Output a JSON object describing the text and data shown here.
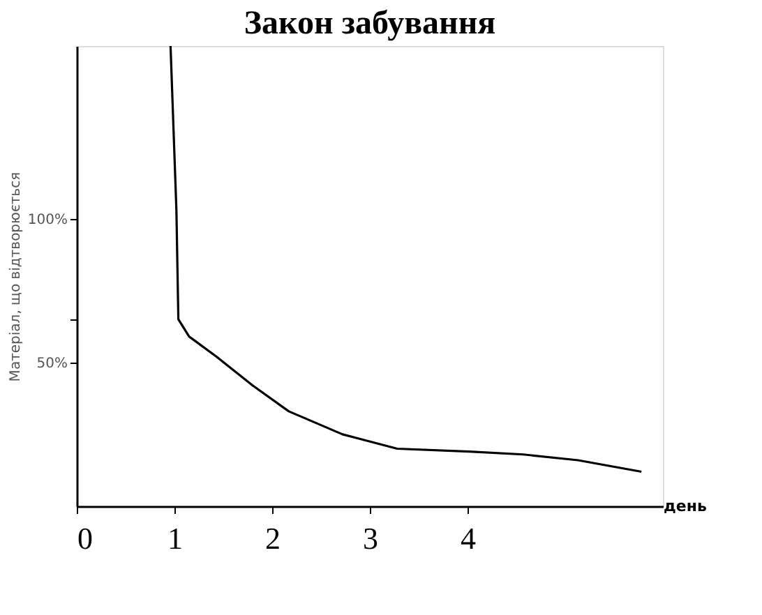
{
  "chart_data": {
    "type": "line",
    "title": "Закон забування",
    "xlabel": "день",
    "ylabel": "Матеріал, що відтворюється",
    "x": [
      0.96,
      1.02,
      1.04,
      1.15,
      1.43,
      1.8,
      2.17,
      2.72,
      3.28,
      4.02,
      4.57,
      5.13,
      5.78
    ],
    "series": [
      {
        "color": "#000000",
        "values": [
          160,
          103,
          65,
          59,
          52,
          42,
          33,
          25,
          20,
          19,
          18,
          16,
          12
        ]
      }
    ],
    "xlim": [
      0,
      6
    ],
    "xticks": [
      0,
      1,
      2,
      3,
      4
    ],
    "ylim": [
      0,
      160
    ],
    "yticks": [
      {
        "value": 50,
        "label": "50%"
      },
      {
        "value": 65,
        "label": null
      },
      {
        "value": 100,
        "label": "100%"
      }
    ],
    "grid": false,
    "legend": false,
    "marker": "none",
    "line_style": "solid"
  }
}
